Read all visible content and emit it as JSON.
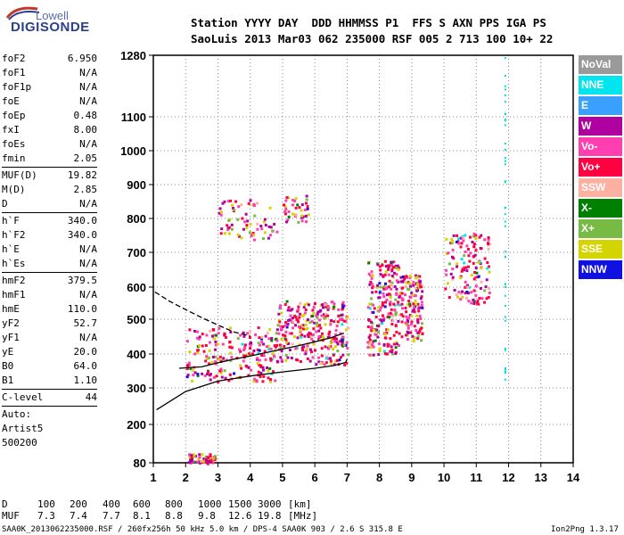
{
  "logo": {
    "top": "Lowell",
    "bottom": "DIGISONDE"
  },
  "header": {
    "line1": "Station YYYY DAY  DDD HHMMSS P1  FFS S AXN PPS IGA PS",
    "line2": "SaoLuis 2013 Mar03 062 235000 RSF 005 2 713 100 10+ 22"
  },
  "params_groups": [
    [
      [
        "foF2",
        "6.950"
      ],
      [
        "foF1",
        "N/A"
      ],
      [
        "foF1p",
        "N/A"
      ],
      [
        "foE",
        "N/A"
      ],
      [
        "foEp",
        "0.48"
      ],
      [
        "fxI",
        "8.00"
      ],
      [
        "foEs",
        "N/A"
      ],
      [
        "fmin",
        "2.05"
      ]
    ],
    [
      [
        "MUF(D)",
        "19.82"
      ],
      [
        "M(D)",
        "2.85"
      ],
      [
        "D",
        "N/A"
      ]
    ],
    [
      [
        "h`F",
        "340.0"
      ],
      [
        "h`F2",
        "340.0"
      ],
      [
        "h`E",
        "N/A"
      ],
      [
        "h`Es",
        "N/A"
      ]
    ],
    [
      [
        "hmF2",
        "379.5"
      ],
      [
        "hmF1",
        "N/A"
      ],
      [
        "hmE",
        "110.0"
      ],
      [
        "yF2",
        "52.7"
      ],
      [
        "yF1",
        "N/A"
      ],
      [
        "yE",
        "20.0"
      ],
      [
        "B0",
        "64.0"
      ],
      [
        "B1",
        "1.10"
      ]
    ],
    [
      [
        "C-level",
        "44"
      ]
    ]
  ],
  "auto_lines": [
    "Auto:",
    "Artist5",
    "500200"
  ],
  "legend": [
    {
      "label": "NoVal",
      "color": "#9a9a9a"
    },
    {
      "label": "NNE",
      "color": "#00e5ee"
    },
    {
      "label": "E",
      "color": "#3aa0ff"
    },
    {
      "label": "W",
      "color": "#b000a0"
    },
    {
      "label": "Vo-",
      "color": "#ff3fb0"
    },
    {
      "label": "Vo+",
      "color": "#ff0040"
    },
    {
      "label": "SSW",
      "color": "#ffb0a0"
    },
    {
      "label": "X-",
      "color": "#008000"
    },
    {
      "label": "X+",
      "color": "#77bb44"
    },
    {
      "label": "SSE",
      "color": "#d4d400"
    },
    {
      "label": "NNW",
      "color": "#1010e0"
    }
  ],
  "chart_data": {
    "type": "scatter",
    "title": "",
    "xlabel": "",
    "ylabel": "",
    "xlim": [
      1,
      14
    ],
    "ylim": [
      80,
      1280
    ],
    "x_ticks": [
      1,
      2,
      3,
      4,
      5,
      6,
      7,
      8,
      9,
      10,
      11,
      12,
      13,
      14
    ],
    "y_ticks": [
      80,
      200,
      300,
      400,
      500,
      600,
      700,
      800,
      900,
      1000,
      1100,
      1280
    ],
    "grid": true,
    "y_scale": "reciprocal-like (virtual height)",
    "traces": [
      {
        "name": "",
        "x": [
          1.1,
          2,
          3,
          4,
          5,
          6,
          6.6,
          6.95,
          7
        ],
        "y": [
          240,
          290,
          320,
          335,
          347,
          358,
          366,
          375,
          385
        ],
        "style": "solid"
      },
      {
        "name": "",
        "x": [
          1.05,
          1.5,
          2,
          2.5,
          3,
          3.5,
          4
        ],
        "y": [
          585,
          556,
          530,
          505,
          483,
          463,
          452
        ],
        "style": "dashed"
      },
      {
        "name": "",
        "x": [
          1.8,
          2.5,
          3,
          3.5,
          4,
          4.5,
          5,
          5.5,
          6,
          6.5,
          6.9
        ],
        "y": [
          358,
          362,
          374,
          385,
          394,
          404,
          414,
          424,
          435,
          447,
          460
        ],
        "style": "solid"
      }
    ],
    "clusters": [
      {
        "x": [
          2,
          4.8
        ],
        "y": [
          320,
          480
        ]
      },
      {
        "x": [
          4.8,
          6
        ],
        "y": [
          380,
          560
        ]
      },
      {
        "x": [
          6,
          7
        ],
        "y": [
          370,
          560
        ]
      },
      {
        "x": [
          7.6,
          8.6
        ],
        "y": [
          400,
          680
        ]
      },
      {
        "x": [
          8.6,
          9.3
        ],
        "y": [
          440,
          640
        ]
      },
      {
        "x": [
          10,
          11.4
        ],
        "y": [
          550,
          760
        ]
      },
      {
        "x": [
          3,
          4.8
        ],
        "y": [
          740,
          860
        ]
      },
      {
        "x": [
          5,
          5.8
        ],
        "y": [
          790,
          870
        ]
      },
      {
        "x": [
          2,
          2.9
        ],
        "y": [
          80,
          110
        ]
      }
    ],
    "scaling_rows": {
      "D": [
        "100",
        "200",
        "400",
        "600",
        "800",
        "1000",
        "1500",
        "3000",
        "[km]"
      ],
      "MUF": [
        "7.3",
        "7.4",
        "7.7",
        "8.1",
        "8.8",
        "9.8",
        "12.6",
        "19.8",
        "[MHz]"
      ]
    }
  },
  "footer": "SAA0K_2013062235000.RSF / 260fx256h 50 kHz 5.0 km / DPS-4 SAA0K 903 / 2.6 S 315.8 E",
  "version": "Ion2Png 1.3.17"
}
